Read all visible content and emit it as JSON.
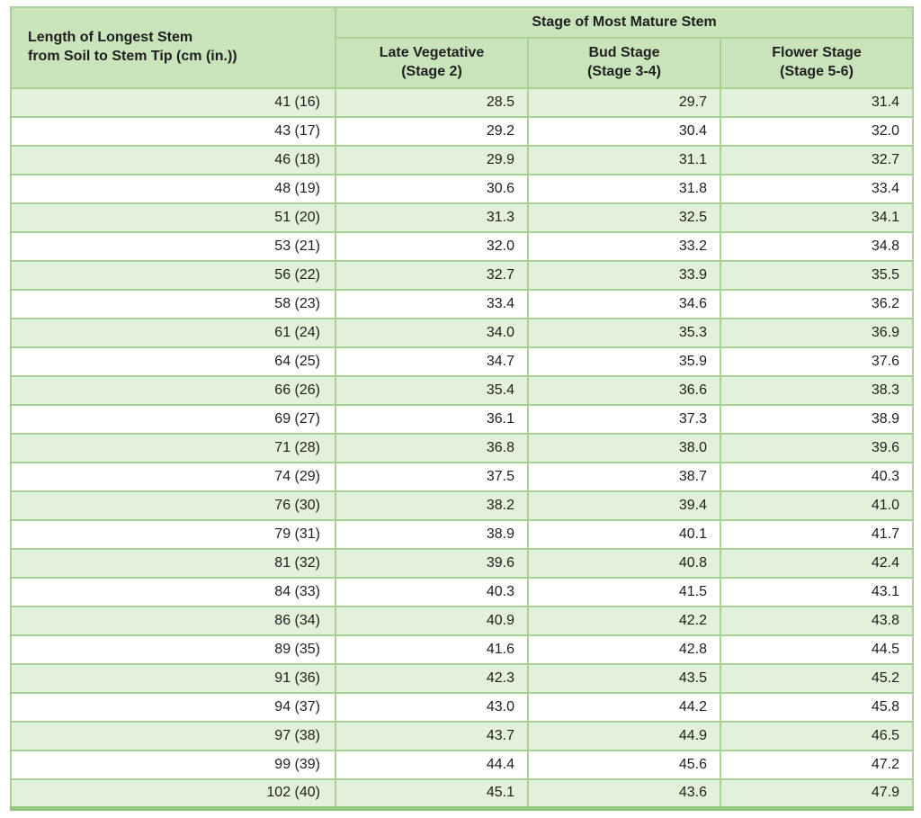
{
  "colors": {
    "header_bg": "#c9e3bb",
    "stripe_bg": "#e3f0da",
    "row_bg": "#ffffff",
    "border": "#a9d294",
    "outer_border": "#9ccb87",
    "text": "#1f1f1f"
  },
  "chart_data": {
    "type": "table",
    "group_header": "Stage of Most Mature Stem",
    "row_header_lines": [
      "Length of Longest Stem",
      "from Soil to Stem Tip (cm (in.))"
    ],
    "columns": [
      {
        "lines": [
          "Late Vegetative",
          "(Stage 2)"
        ]
      },
      {
        "lines": [
          "Bud Stage",
          "(Stage 3-4)"
        ]
      },
      {
        "lines": [
          "Flower Stage",
          "(Stage 5-6)"
        ]
      }
    ],
    "rows": [
      {
        "length": "41 (16)",
        "values": [
          "28.5",
          "29.7",
          "31.4"
        ]
      },
      {
        "length": "43 (17)",
        "values": [
          "29.2",
          "30.4",
          "32.0"
        ]
      },
      {
        "length": "46 (18)",
        "values": [
          "29.9",
          "31.1",
          "32.7"
        ]
      },
      {
        "length": "48 (19)",
        "values": [
          "30.6",
          "31.8",
          "33.4"
        ]
      },
      {
        "length": "51 (20)",
        "values": [
          "31.3",
          "32.5",
          "34.1"
        ]
      },
      {
        "length": "53 (21)",
        "values": [
          "32.0",
          "33.2",
          "34.8"
        ]
      },
      {
        "length": "56 (22)",
        "values": [
          "32.7",
          "33.9",
          "35.5"
        ]
      },
      {
        "length": "58 (23)",
        "values": [
          "33.4",
          "34.6",
          "36.2"
        ]
      },
      {
        "length": "61 (24)",
        "values": [
          "34.0",
          "35.3",
          "36.9"
        ]
      },
      {
        "length": "64 (25)",
        "values": [
          "34.7",
          "35.9",
          "37.6"
        ]
      },
      {
        "length": "66 (26)",
        "values": [
          "35.4",
          "36.6",
          "38.3"
        ]
      },
      {
        "length": "69 (27)",
        "values": [
          "36.1",
          "37.3",
          "38.9"
        ]
      },
      {
        "length": "71 (28)",
        "values": [
          "36.8",
          "38.0",
          "39.6"
        ]
      },
      {
        "length": "74 (29)",
        "values": [
          "37.5",
          "38.7",
          "40.3"
        ]
      },
      {
        "length": "76 (30)",
        "values": [
          "38.2",
          "39.4",
          "41.0"
        ]
      },
      {
        "length": "79 (31)",
        "values": [
          "38.9",
          "40.1",
          "41.7"
        ]
      },
      {
        "length": "81 (32)",
        "values": [
          "39.6",
          "40.8",
          "42.4"
        ]
      },
      {
        "length": "84 (33)",
        "values": [
          "40.3",
          "41.5",
          "43.1"
        ]
      },
      {
        "length": "86 (34)",
        "values": [
          "40.9",
          "42.2",
          "43.8"
        ]
      },
      {
        "length": "89 (35)",
        "values": [
          "41.6",
          "42.8",
          "44.5"
        ]
      },
      {
        "length": "91 (36)",
        "values": [
          "42.3",
          "43.5",
          "45.2"
        ]
      },
      {
        "length": "94 (37)",
        "values": [
          "43.0",
          "44.2",
          "45.8"
        ]
      },
      {
        "length": "97 (38)",
        "values": [
          "43.7",
          "44.9",
          "46.5"
        ]
      },
      {
        "length": "99 (39)",
        "values": [
          "44.4",
          "45.6",
          "47.2"
        ]
      },
      {
        "length": "102 (40)",
        "values": [
          "45.1",
          "43.6",
          "47.9"
        ]
      }
    ]
  }
}
